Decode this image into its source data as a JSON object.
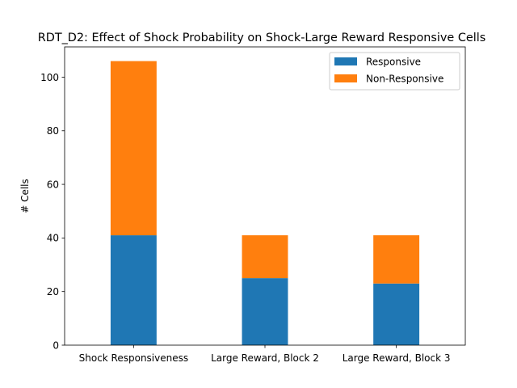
{
  "chart_data": {
    "type": "bar",
    "stacked": true,
    "title": "RDT_D2: Effect of Shock Probability on Shock-Large Reward Responsive Cells",
    "xlabel": "",
    "ylabel": "# Cells",
    "categories": [
      "Shock Responsiveness",
      "Large Reward, Block 2",
      "Large Reward, Block 3"
    ],
    "series": [
      {
        "name": "Responsive",
        "values": [
          41,
          25,
          23
        ],
        "color": "#1f77b4"
      },
      {
        "name": "Non-Responsive",
        "values": [
          65,
          16,
          18
        ],
        "color": "#ff7f0e"
      }
    ],
    "ylim": [
      0,
      111.3
    ],
    "yticks": [
      0,
      20,
      40,
      60,
      80,
      100
    ],
    "grid": false,
    "legend": "top-right"
  }
}
